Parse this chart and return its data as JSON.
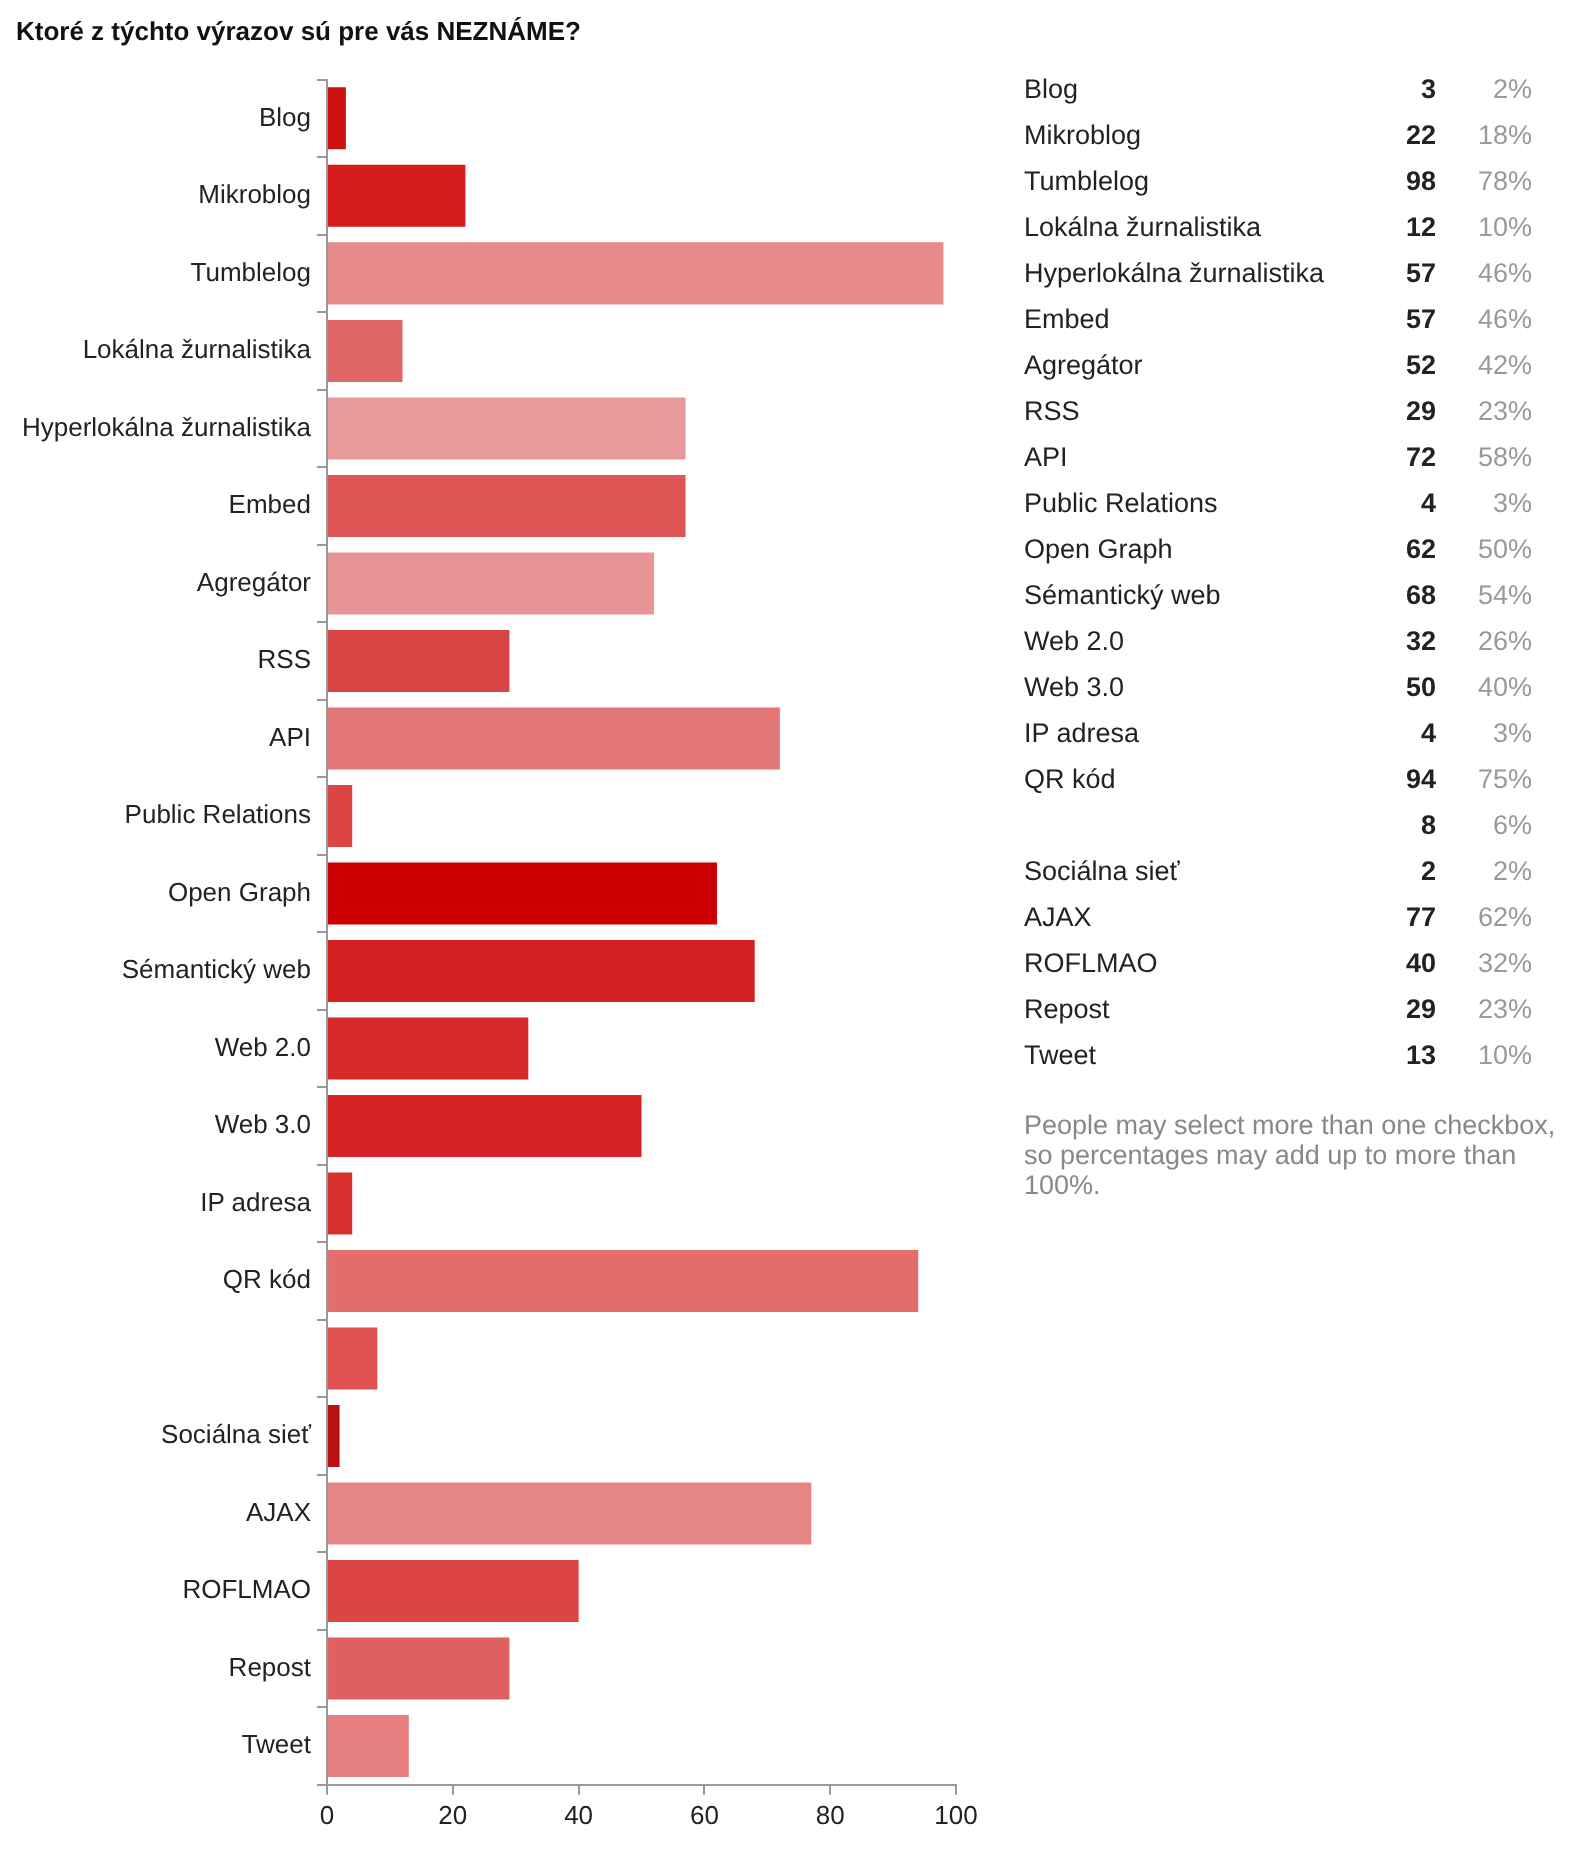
{
  "chart_data": [
    {
      "type": "bar",
      "orientation": "horizontal",
      "title": "Ktoré z týchto výrazov sú pre vás NEZNÁME?",
      "categories": [
        "Blog",
        "Mikroblog",
        "Tumblelog",
        "Lokálna žurnalistika",
        "Hyperlokálna žurnalistika",
        "Embed",
        "Agregátor",
        "RSS",
        "API",
        "Public Relations",
        "Open Graph",
        "Sémantický web",
        "Web 2.0",
        "Web 3.0",
        "IP adresa",
        "QR kód",
        null,
        "Sociálna sieť",
        "AJAX",
        "ROFLMAO",
        "Repost",
        "Tweet"
      ],
      "values": [
        3,
        22,
        98,
        12,
        57,
        57,
        52,
        29,
        72,
        4,
        62,
        68,
        32,
        50,
        4,
        94,
        8,
        2,
        77,
        40,
        29,
        13
      ],
      "colors": [
        "#cc1111",
        "#d41a1a",
        "#e68a8a",
        "#e06666",
        "#e89a9a",
        "#dd5555",
        "#e89595",
        "#d94444",
        "#e37777",
        "#dd4444",
        "#cc0000",
        "#d42020",
        "#d62a2a",
        "#d42424",
        "#d93030",
        "#e36d6d",
        "#e05050",
        "#bb1111",
        "#e68585",
        "#dd4444",
        "#e06060",
        "#e68080"
      ],
      "xlim": [
        0,
        100
      ],
      "xticks": [
        0,
        20,
        40,
        60,
        80,
        100
      ],
      "grid": false,
      "legend": false,
      "annotations": [
        "People may select more than one checkbox, so percentages may add up to more than 100%."
      ]
    },
    {
      "type": "other",
      "annotations": [
        "Blog 3 2%",
        "Mikroblog 22 18%",
        "Tumblelog 98 78%",
        "Lokálna žurnalistika 12 10%",
        "Hyperlokálna žurnalistika 57 46%",
        "Embed 57 46%",
        "Agregátor 52 42%",
        "RSS 29 23%",
        "API 72 58%",
        "Public Relations 4 3%",
        "Open Graph 62 50%",
        "Sémantický web 68 54%",
        "Web 2.0 32 26%",
        "Web 3.0 50 40%",
        "IP adresa 4 3%",
        "QR kód 94 75%",
        "8 6%",
        "Sociálna sieť 2 2%",
        "AJAX 77 62%",
        "ROFLMAO 40 32%",
        "Repost 29 23%",
        "Tweet 13 10%"
      ]
    }
  ]
}
